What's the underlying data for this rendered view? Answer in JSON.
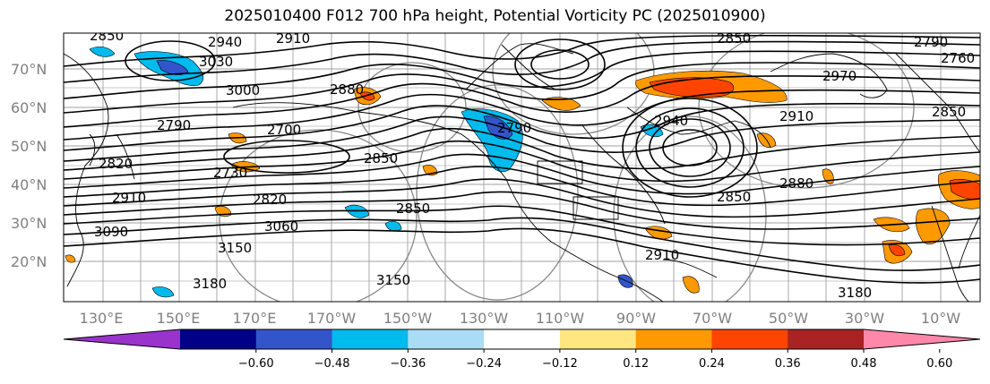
{
  "title": "2025010400 F012 700 hPa height, Potential Vorticity PC (2025010900)",
  "lat_labels": [
    "70°N",
    "60°N",
    "50°N",
    "40°N",
    "30°N",
    "20°N"
  ],
  "lon_labels": [
    "130°E",
    "150°E",
    "170°E",
    "170°W",
    "150°W",
    "130°W",
    "110°W",
    "90°W",
    "70°W",
    "50°W",
    "30°W",
    "10°W"
  ],
  "contour_labels": [
    "2850",
    "2940",
    "2910",
    "3030",
    "3000",
    "2880",
    "2850",
    "2970",
    "2790",
    "2760",
    "2850",
    "2910",
    "2790",
    "2700",
    "2820",
    "2790",
    "2880",
    "2850",
    "2940",
    "2730",
    "2820",
    "2910",
    "3060",
    "3090",
    "3150",
    "3150",
    "3180",
    "3180",
    "2850",
    "2910",
    "2850"
  ],
  "colorbar": {
    "colors": [
      "#9933cc",
      "#000088",
      "#3355cc",
      "#00bbee",
      "#aaddf5",
      "#ffffff",
      "#ffe680",
      "#ff9900",
      "#ff4400",
      "#aa2222",
      "#ff88aa"
    ],
    "ticks": [
      "−0.60",
      "−0.48",
      "−0.36",
      "−0.24",
      "−0.12",
      "0.12",
      "0.24",
      "0.36",
      "0.48",
      "0.60"
    ]
  }
}
